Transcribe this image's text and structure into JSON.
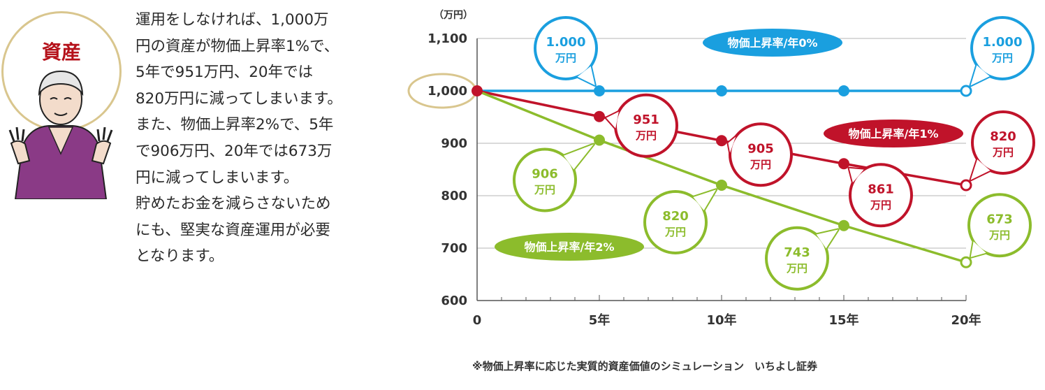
{
  "badge": {
    "label": "資産"
  },
  "description": [
    "運用をしなければ、1,000万",
    "円の資産が物価上昇率1%で、",
    "5年で951万円、20年では",
    "820万円に減ってしまいます。",
    "また、物価上昇率2%で、5年",
    "で906万円、20年では673万",
    "円に減ってしまいます。",
    "貯めたお金を減らさないため",
    "にも、堅実な資産運用が必要",
    "となります。"
  ],
  "colors": {
    "blue": "#1a9fdf",
    "red": "#c0132a",
    "green": "#8cbc2c",
    "accent_ring": "#d9c68e"
  },
  "icons": {
    "figure": "elderly-woman-illustration"
  },
  "chart_data": {
    "type": "line",
    "unit_label": "（万円）",
    "x": [
      0,
      5,
      10,
      15,
      20
    ],
    "x_tick_labels": [
      "0",
      "5年",
      "10年",
      "15年",
      "20年"
    ],
    "y_tick_labels": [
      "1,100",
      "1,000",
      "900",
      "800",
      "700",
      "600"
    ],
    "y_ticks": [
      1100,
      1000,
      900,
      800,
      700,
      600
    ],
    "ylim": [
      600,
      1100
    ],
    "grid": true,
    "series": [
      {
        "name": "物価上昇率/年0%",
        "color": "#1a9fdf",
        "values": [
          1000,
          1000,
          1000,
          1000,
          1000
        ]
      },
      {
        "name": "物価上昇率/年1%",
        "color": "#c0132a",
        "values": [
          1000,
          951,
          905,
          861,
          820
        ]
      },
      {
        "name": "物価上昇率/年2%",
        "color": "#8cbc2c",
        "values": [
          1000,
          906,
          820,
          743,
          673
        ]
      }
    ],
    "callouts": [
      {
        "series": 0,
        "x": 5,
        "value": "1.000",
        "unit": "万円"
      },
      {
        "series": 0,
        "x": 20,
        "value": "1.000",
        "unit": "万円"
      },
      {
        "series": 1,
        "x": 5,
        "value": "951",
        "unit": "万円"
      },
      {
        "series": 1,
        "x": 10,
        "value": "905",
        "unit": "万円"
      },
      {
        "series": 1,
        "x": 15,
        "value": "861",
        "unit": "万円"
      },
      {
        "series": 1,
        "x": 20,
        "value": "820",
        "unit": "万円"
      },
      {
        "series": 2,
        "x": 5,
        "value": "906",
        "unit": "万円"
      },
      {
        "series": 2,
        "x": 10,
        "value": "820",
        "unit": "万円"
      },
      {
        "series": 2,
        "x": 15,
        "value": "743",
        "unit": "万円"
      },
      {
        "series": 2,
        "x": 20,
        "value": "673",
        "unit": "万円"
      }
    ]
  },
  "footnote": "※物価上昇率に応じた実質的資産価値のシミュレーション　いちよし証券"
}
